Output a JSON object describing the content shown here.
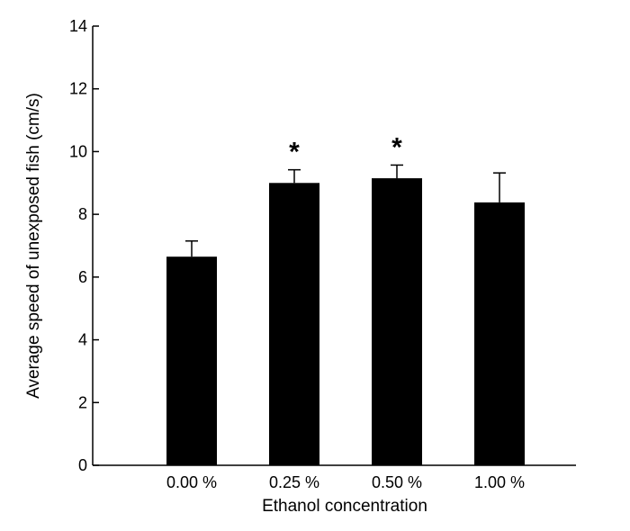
{
  "chart_data": {
    "type": "bar",
    "xlabel": "Ethanol concentration",
    "ylabel": "Average speed of unexposed fish (cm/s)",
    "categories": [
      "0.00 %",
      "0.25 %",
      "0.50 %",
      "1.00 %"
    ],
    "values": [
      6.65,
      9.0,
      9.15,
      8.38
    ],
    "error_upper": [
      7.15,
      9.42,
      9.57,
      9.32
    ],
    "annotations": [
      "",
      "*",
      "*",
      ""
    ],
    "ylim": [
      0,
      14
    ],
    "yticks": [
      0,
      2,
      4,
      6,
      8,
      10,
      12,
      14
    ],
    "bar_color": "#000000",
    "grid": false,
    "legend": "none"
  }
}
